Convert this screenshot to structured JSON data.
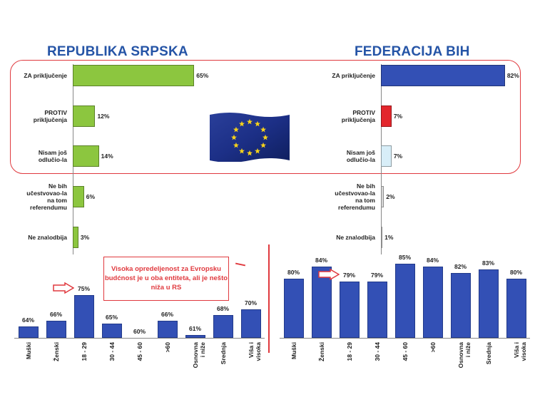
{
  "headings": {
    "left": "REPUBLIKA SRPSKA",
    "right": "FEDERACIJA BIH"
  },
  "callout": {
    "text": "Visoka opredeljenost za Evropsku budćnost je u oba entiteta, ali je nešto niža u RS"
  },
  "colors": {
    "heading": "#2554a6",
    "green_bar": "#8cc63f",
    "blue_bar": "#3350b5",
    "red_bar": "#e3262c",
    "light_blue_bar": "#d8eef8",
    "grey_bar": "#d9d9d9",
    "highlight": "#e0393e"
  },
  "chart_data": [
    {
      "type": "bar",
      "orientation": "horizontal",
      "panel": "REPUBLIKA SRPSKA",
      "categories": [
        "ZA priključenje",
        "PROTIV\npriključenja",
        "Nisam još\nodlučio-la",
        "Ne bih\nučestvovao-la\nna tom\nreferendumu",
        "Ne zna\\odbija"
      ],
      "values": [
        65,
        12,
        14,
        6,
        3
      ],
      "value_labels": [
        "65%",
        "12%",
        "14%",
        "6%",
        "3%"
      ],
      "xlim": [
        0,
        100
      ]
    },
    {
      "type": "bar",
      "orientation": "horizontal",
      "panel": "FEDERACIJA BIH",
      "categories": [
        "ZA priključenje",
        "PROTIV\npriključenja",
        "Nisam još\nodlučio-la",
        "Ne bih\nučestvovao-la\nna tom\nreferendumu",
        "Ne zna\\odbija"
      ],
      "values": [
        82,
        7,
        7,
        2,
        1
      ],
      "value_labels": [
        "82%",
        "7%",
        "7%",
        "2%",
        "1%"
      ],
      "xlim": [
        0,
        100
      ]
    },
    {
      "type": "bar",
      "orientation": "vertical",
      "panel": "REPUBLIKA SRPSKA",
      "categories": [
        "Muški",
        "Ženski",
        "18 - 29",
        "30 - 44",
        "45 - 60",
        ">60",
        "Osnovna\ni niže",
        "Srednja",
        "Viša i\nvisoka"
      ],
      "values": [
        64,
        66,
        75,
        65,
        60,
        66,
        61,
        68,
        70
      ],
      "value_labels": [
        "64%",
        "66%",
        "75%",
        "65%",
        "60%",
        "66%",
        "61%",
        "68%",
        "70%"
      ],
      "ylim": [
        60,
        77
      ],
      "highlight_category": "18 - 29"
    },
    {
      "type": "bar",
      "orientation": "vertical",
      "panel": "FEDERACIJA BIH",
      "categories": [
        "Muški",
        "Ženski",
        "18 - 29",
        "30 - 44",
        "45 - 60",
        ">60",
        "Osnovna\ni niže",
        "Srednja",
        "Viša i\nvisoka"
      ],
      "values": [
        80,
        84,
        79,
        79,
        85,
        84,
        82,
        83,
        80
      ],
      "value_labels": [
        "80%",
        "84%",
        "79%",
        "79%",
        "85%",
        "84%",
        "82%",
        "83%",
        "80%"
      ],
      "ylim": [
        60,
        86
      ],
      "highlight_category": "18 - 29"
    }
  ]
}
